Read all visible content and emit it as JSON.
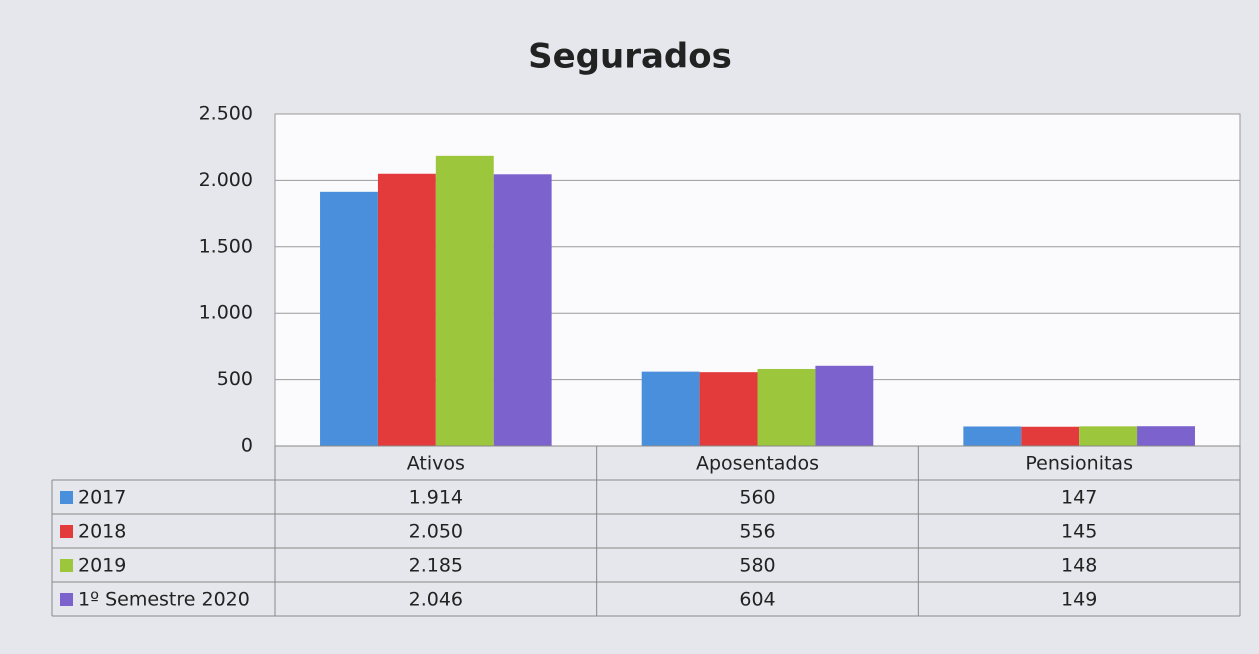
{
  "chart_data": {
    "type": "bar",
    "title": "Segurados",
    "categories": [
      "Ativos",
      "Aposentados",
      "Pensionitas"
    ],
    "series": [
      {
        "name": "2017",
        "color": "#4a8fdc",
        "values": [
          1914,
          560,
          147
        ],
        "value_labels": [
          "1.914",
          "560",
          "147"
        ]
      },
      {
        "name": "2018",
        "color": "#e33b3b",
        "values": [
          2050,
          556,
          145
        ],
        "value_labels": [
          "2.050",
          "556",
          "145"
        ]
      },
      {
        "name": "2019",
        "color": "#9cc63c",
        "values": [
          2185,
          580,
          148
        ],
        "value_labels": [
          "2.185",
          "580",
          "148"
        ]
      },
      {
        "name": "1º Semestre 2020",
        "color": "#7b62cc",
        "values": [
          2046,
          604,
          149
        ],
        "value_labels": [
          "2.046",
          "604",
          "149"
        ]
      }
    ],
    "ylim": [
      0,
      2500
    ],
    "yticks": [
      0,
      500,
      {
        "value": 1000,
        "label": "1.000"
      },
      {
        "value": 1500,
        "label": "1.500"
      },
      {
        "value": 2000,
        "label": "2.000"
      },
      {
        "value": 2500,
        "label": "2.500"
      }
    ],
    "grid": true
  }
}
